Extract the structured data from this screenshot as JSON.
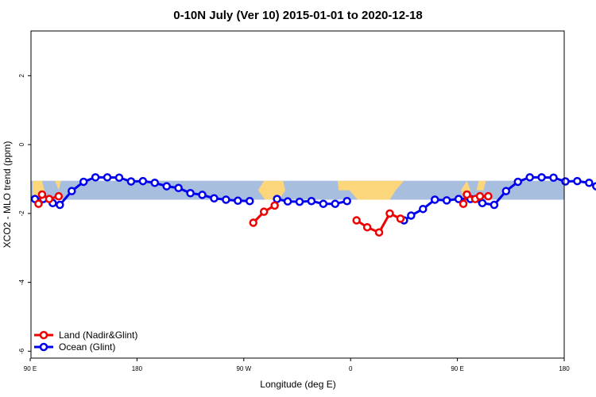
{
  "chart_data": {
    "type": "line",
    "title": "0-10N July (Ver 10)   2015-01-01 to 2020-12-18",
    "xlabel": "Longitude (deg E)",
    "ylabel": "XCO2 - MLO trend (ppm)",
    "xlim": [
      90,
      450
    ],
    "ylim": [
      -6.2,
      3.3
    ],
    "x_ticks": [
      {
        "value": 90,
        "label": "90 E"
      },
      {
        "value": 180,
        "label": "180"
      },
      {
        "value": 270,
        "label": "90 W"
      },
      {
        "value": 360,
        "label": "0"
      },
      {
        "value": 450,
        "label": "90 E"
      },
      {
        "value": 540,
        "label": "180"
      }
    ],
    "y_ticks": [
      {
        "value": 2,
        "label": "2"
      },
      {
        "value": 0,
        "label": "0"
      },
      {
        "value": -2,
        "label": "-2"
      },
      {
        "value": -4,
        "label": "-4"
      },
      {
        "value": -6,
        "label": "-6"
      }
    ],
    "background_band": {
      "ymin": -1.6,
      "ymax": -1.05,
      "ocean_color": "#a7bedf",
      "land_color": "#fbd67b"
    },
    "legend": {
      "position": "bottom-left"
    },
    "series": [
      {
        "name": "Land (Nadir&Glint)",
        "color": "#ee0000",
        "segments": [
          {
            "x": [
              97,
              100,
              106,
              114
            ],
            "y": [
              -1.72,
              -1.45,
              -1.58,
              -1.5
            ]
          },
          {
            "x": [
              278,
              287,
              296
            ],
            "y": [
              -2.27,
              -1.95,
              -1.77
            ]
          },
          {
            "x": [
              365,
              374,
              384,
              393,
              402
            ],
            "y": [
              -2.2,
              -2.4,
              -2.55,
              -2.0,
              -2.15
            ]
          },
          {
            "x": [
              455,
              458,
              465,
              469,
              476
            ],
            "y": [
              -1.72,
              -1.45,
              -1.58,
              -1.5,
              -1.5
            ]
          }
        ]
      },
      {
        "name": "Ocean (Glint)",
        "color": "#0000ee",
        "segments": [
          {
            "x": [
              94,
              101,
              109,
              115,
              125,
              135,
              145,
              155,
              165,
              175,
              185,
              195,
              205,
              215,
              225,
              235,
              245,
              255,
              265,
              275
            ],
            "y": [
              -1.58,
              -1.58,
              -1.7,
              -1.75,
              -1.35,
              -1.08,
              -0.95,
              -0.95,
              -0.96,
              -1.07,
              -1.06,
              -1.11,
              -1.21,
              -1.26,
              -1.41,
              -1.46,
              -1.56,
              -1.6,
              -1.63,
              -1.64
            ]
          },
          {
            "x": [
              298,
              307,
              317,
              327,
              337,
              347,
              357
            ],
            "y": [
              -1.58,
              -1.65,
              -1.66,
              -1.64,
              -1.72,
              -1.72,
              -1.64
            ]
          },
          {
            "x": [
              405,
              411,
              421,
              431,
              441,
              451,
              461,
              471,
              481,
              491,
              501,
              511,
              521,
              531,
              541,
              551,
              561,
              567
            ],
            "y": [
              -2.2,
              -2.06,
              -1.87,
              -1.6,
              -1.62,
              -1.58,
              -1.58,
              -1.7,
              -1.75,
              -1.35,
              -1.08,
              -0.95,
              -0.95,
              -0.96,
              -1.07,
              -1.06,
              -1.11,
              -1.21
            ]
          }
        ]
      }
    ]
  }
}
